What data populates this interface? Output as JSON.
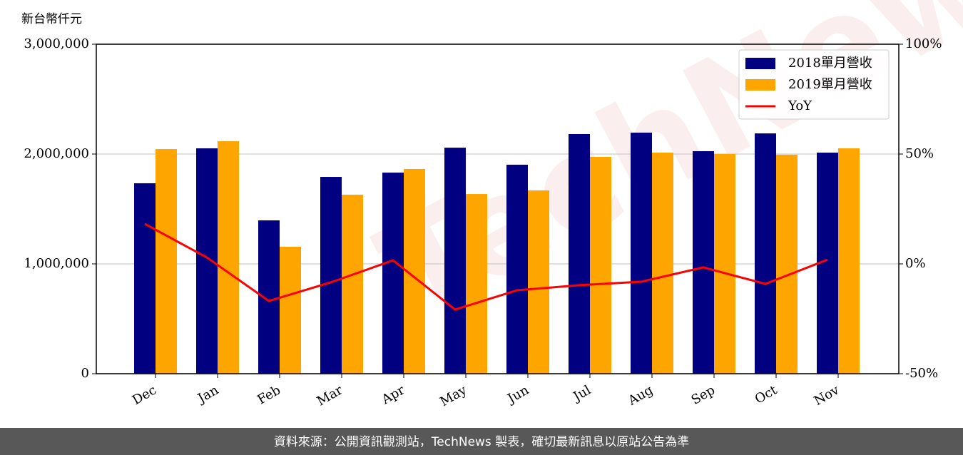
{
  "chart_data": {
    "type": "bar",
    "ylabel": "新台幣仟元",
    "watermark": "TechNews",
    "footer": "資料來源：公開資訊觀測站，TechNews 製表，確切最新訊息以原站公告為準",
    "categories": [
      "Dec",
      "Jan",
      "Feb",
      "Mar",
      "Apr",
      "May",
      "Jun",
      "Jul",
      "Aug",
      "Sep",
      "Oct",
      "Nov"
    ],
    "series": [
      {
        "name": "2018單月營收",
        "type": "bar",
        "color": "#000080",
        "values": [
          1734000,
          2052000,
          1396000,
          1792000,
          1831000,
          2058000,
          1903000,
          2182000,
          2195000,
          2026000,
          2188000,
          2013000
        ]
      },
      {
        "name": "2019單月營收",
        "type": "bar",
        "color": "#ffa500",
        "values": [
          2045000,
          2117000,
          1156000,
          1630000,
          1864000,
          1636000,
          1669000,
          1974000,
          2013000,
          2000000,
          1994000,
          2052000
        ]
      },
      {
        "name": "YoY",
        "type": "line",
        "axis": "y2",
        "color": "#ff0000",
        "values": [
          18.2,
          2.9,
          -16.9,
          -8.4,
          1.6,
          -20.8,
          -12.0,
          -9.7,
          -8.1,
          -1.6,
          -9.1,
          1.9
        ]
      }
    ],
    "ylim": [
      0,
      3000000
    ],
    "yticks": [
      0,
      {
        "value": 1000000,
        "label": "1,000,000"
      },
      {
        "value": 2000000,
        "label": "2,000,000"
      },
      {
        "value": 3000000,
        "label": "3,000,000"
      }
    ],
    "y2lim": [
      -50,
      100
    ],
    "y2ticks": [
      {
        "value": -50,
        "label": "-50%"
      },
      {
        "value": 0,
        "label": "0%"
      },
      {
        "value": 50,
        "label": "50%"
      },
      {
        "value": 100,
        "label": "100%"
      }
    ],
    "grid": true,
    "legend": "upper-right"
  }
}
